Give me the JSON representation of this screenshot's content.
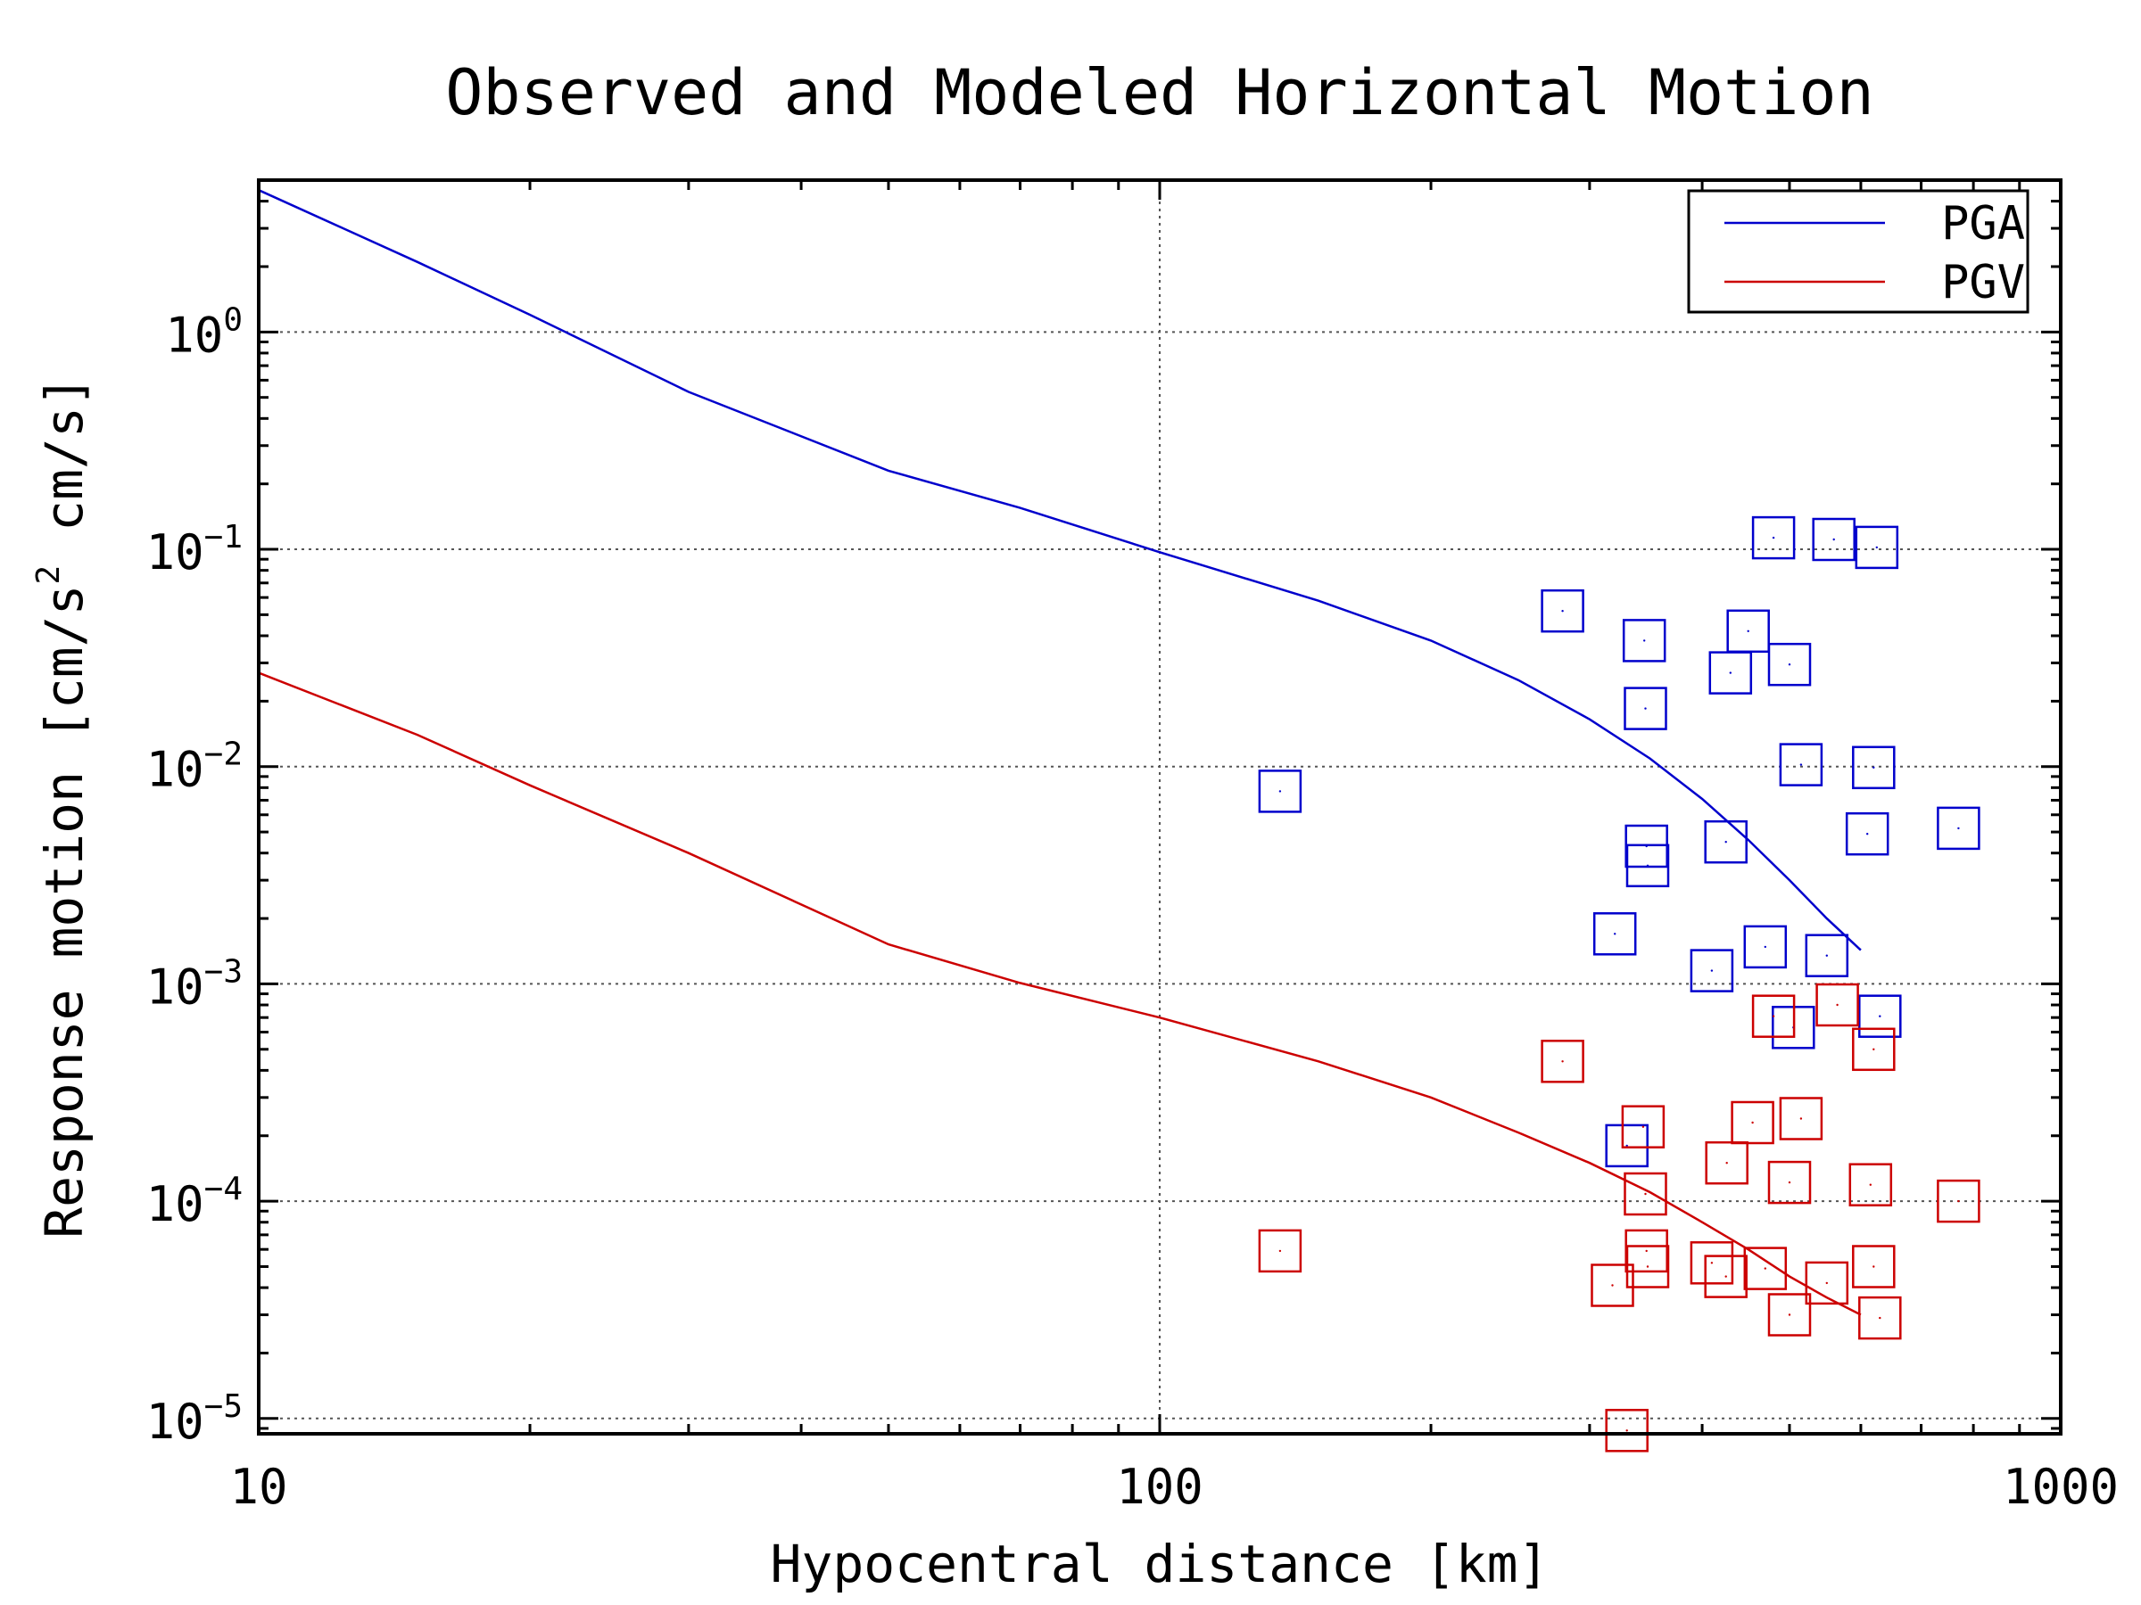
{
  "chart_data": {
    "type": "scatter",
    "title": "Observed and Modeled Horizontal Motion",
    "xlabel": "Hypocentral distance [km]",
    "ylabel": "Response motion [cm/s² cm/s]",
    "ylabel_parts": {
      "main": "Response motion [cm/s",
      "sup": "2",
      "tail": "cm/s]"
    },
    "xscale": "log",
    "yscale": "log",
    "xlim": [
      10,
      1000
    ],
    "ylim": [
      8.5e-06,
      5
    ],
    "grid": true,
    "legend_position": "top-right",
    "x_ticks": [
      {
        "value": 10,
        "label": "10"
      },
      {
        "value": 100,
        "label": "100"
      },
      {
        "value": 1000,
        "label": "1000"
      }
    ],
    "y_ticks": [
      {
        "value": 1,
        "base": "10",
        "exp": "0"
      },
      {
        "value": 0.1,
        "base": "10",
        "exp": "−1"
      },
      {
        "value": 0.01,
        "base": "10",
        "exp": "−2"
      },
      {
        "value": 0.001,
        "base": "10",
        "exp": "−3"
      },
      {
        "value": 0.0001,
        "base": "10",
        "exp": "−4"
      },
      {
        "value": 1e-05,
        "base": "10",
        "exp": "−5"
      }
    ],
    "series": [
      {
        "name": "PGA",
        "kind": "model",
        "color": "#0000cc",
        "x": [
          10,
          15,
          20,
          30,
          50,
          70,
          100,
          150,
          200,
          250,
          300,
          350,
          400,
          450,
          500,
          550,
          600
        ],
        "y": [
          4.5,
          2.1,
          1.2,
          0.53,
          0.23,
          0.155,
          0.097,
          0.058,
          0.038,
          0.025,
          0.0165,
          0.0109,
          0.0071,
          0.0046,
          0.003,
          0.002,
          0.00143
        ]
      },
      {
        "name": "PGV",
        "kind": "model",
        "color": "#cc0000",
        "x": [
          10,
          15,
          20,
          30,
          50,
          70,
          100,
          150,
          200,
          250,
          300,
          350,
          400,
          450,
          500,
          550,
          600
        ],
        "y": [
          0.027,
          0.014,
          0.0082,
          0.004,
          0.00152,
          0.00101,
          0.0007,
          0.00044,
          0.0003,
          0.000207,
          0.00015,
          0.00011,
          8e-05,
          6e-05,
          4.5e-05,
          3.6e-05,
          3e-05
        ]
      },
      {
        "name": "PGA observed",
        "kind": "observed",
        "color": "#0000cc",
        "points": [
          [
            136,
            0.0077
          ],
          [
            280,
            0.052
          ],
          [
            320,
            0.0017
          ],
          [
            330,
            0.00018
          ],
          [
            345,
            0.038
          ],
          [
            346,
            0.0185
          ],
          [
            347,
            0.0043
          ],
          [
            348,
            0.0035
          ],
          [
            410,
            0.00115
          ],
          [
            425,
            0.0045
          ],
          [
            430,
            0.027
          ],
          [
            450,
            0.042
          ],
          [
            470,
            0.00148
          ],
          [
            480,
            0.113
          ],
          [
            500,
            0.0295
          ],
          [
            505,
            0.00063
          ],
          [
            515,
            0.0102
          ],
          [
            550,
            0.00135
          ],
          [
            560,
            0.111
          ],
          [
            610,
            0.0049
          ],
          [
            620,
            0.0099
          ],
          [
            625,
            0.102
          ],
          [
            630,
            0.00071
          ],
          [
            770,
            0.0052
          ]
        ]
      },
      {
        "name": "PGV observed",
        "kind": "observed",
        "color": "#cc0000",
        "points": [
          [
            136,
            5.9e-05
          ],
          [
            280,
            0.00044
          ],
          [
            318,
            4.1e-05
          ],
          [
            330,
            8.8e-06
          ],
          [
            344,
            0.00022
          ],
          [
            346,
            0.000108
          ],
          [
            347,
            5.9e-05
          ],
          [
            348,
            5e-05
          ],
          [
            410,
            5.2e-05
          ],
          [
            425,
            4.5e-05
          ],
          [
            426,
            0.00015
          ],
          [
            455,
            0.00023
          ],
          [
            470,
            4.9e-05
          ],
          [
            480,
            0.00071
          ],
          [
            500,
            0.000122
          ],
          [
            500,
            3e-05
          ],
          [
            515,
            0.00024
          ],
          [
            550,
            4.2e-05
          ],
          [
            565,
            0.0008
          ],
          [
            615,
            0.000119
          ],
          [
            620,
            0.0005
          ],
          [
            620,
            5e-05
          ],
          [
            630,
            2.9e-05
          ],
          [
            770,
            0.0001
          ]
        ]
      }
    ],
    "legend": [
      {
        "label": "PGA",
        "color": "#0000cc"
      },
      {
        "label": "PGV",
        "color": "#cc0000"
      }
    ]
  }
}
